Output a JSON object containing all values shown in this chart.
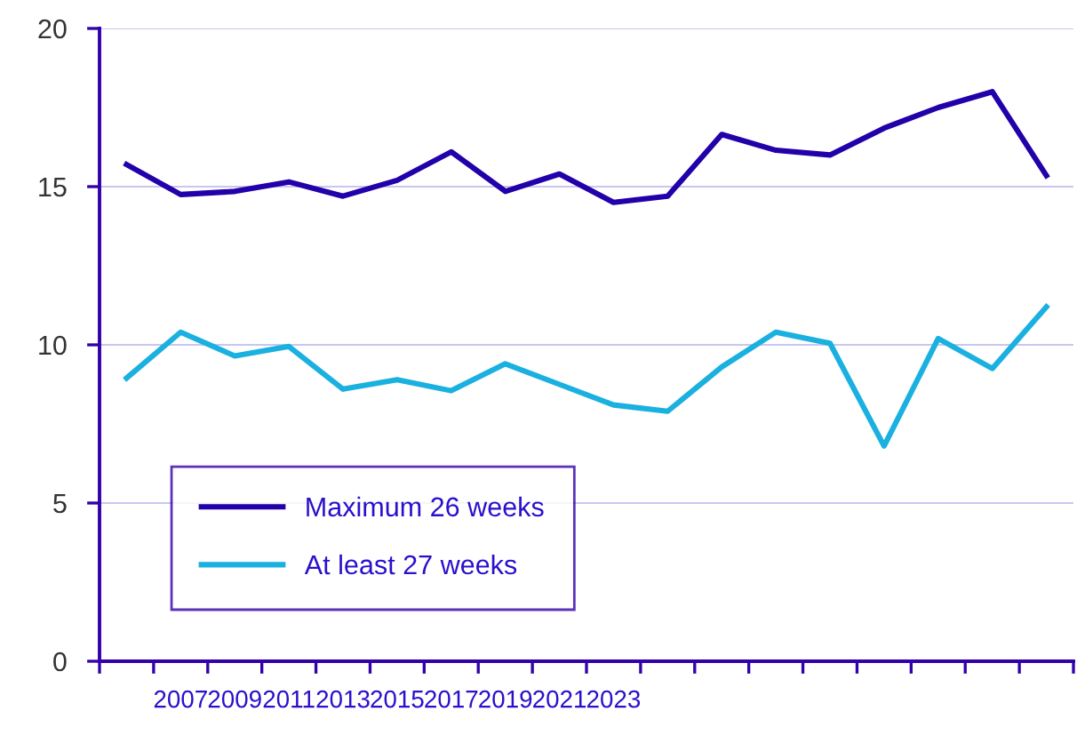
{
  "chart_data": {
    "type": "line",
    "categories": [
      null,
      "2007",
      "2009",
      "2011",
      "2013",
      "2015",
      "2017",
      "2019",
      "2021",
      "2023",
      null,
      null,
      null,
      null,
      null,
      null,
      null,
      null
    ],
    "series": [
      {
        "name": "Maximum 26 weeks",
        "color": "#2200aa",
        "values": [
          15.7,
          14.75,
          14.85,
          15.15,
          14.7,
          15.2,
          16.1,
          14.85,
          15.4,
          14.5,
          14.7,
          16.65,
          16.15,
          16.0,
          16.85,
          17.5,
          18.0,
          15.35
        ]
      },
      {
        "name": "At least 27 weeks",
        "color": "#1ab0e0",
        "values": [
          8.95,
          10.4,
          9.65,
          9.95,
          8.6,
          8.9,
          8.55,
          9.4,
          8.75,
          8.1,
          7.9,
          9.3,
          10.4,
          10.05,
          6.8,
          10.2,
          9.25,
          11.2
        ]
      }
    ],
    "ylim": [
      0,
      20
    ],
    "yticks": [
      0,
      5,
      10,
      15,
      20
    ],
    "grid": "y",
    "legend": "bottom left",
    "marker": "none",
    "line_style": "solid"
  }
}
